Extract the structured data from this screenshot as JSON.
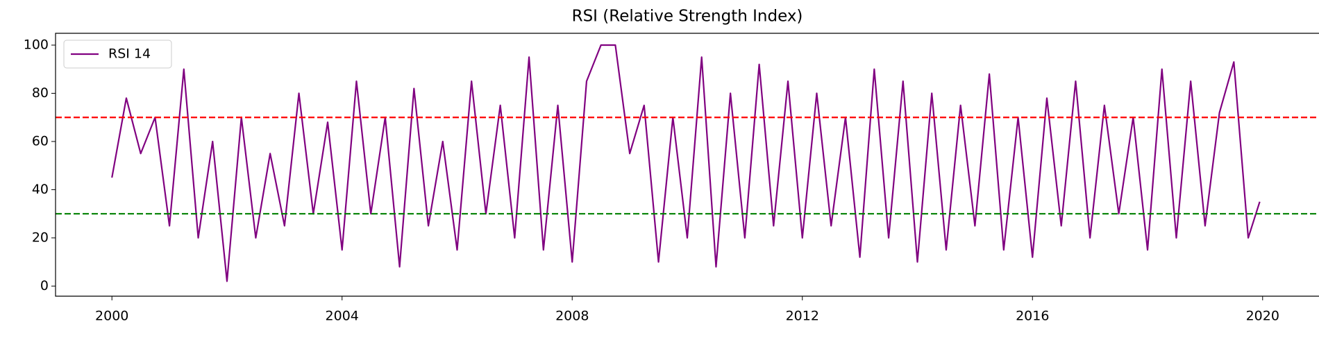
{
  "chart_data": {
    "type": "line",
    "title": "RSI (Relative Strength Index)",
    "x": [
      2000,
      2000.25,
      2000.5,
      2000.75,
      2001,
      2001.25,
      2001.5,
      2001.75,
      2002,
      2002.25,
      2002.5,
      2002.75,
      2003,
      2003.25,
      2003.5,
      2003.75,
      2004,
      2004.25,
      2004.5,
      2004.75,
      2005,
      2005.25,
      2005.5,
      2005.75,
      2006,
      2006.25,
      2006.5,
      2006.75,
      2007,
      2007.25,
      2007.5,
      2007.75,
      2008,
      2008.25,
      2008.5,
      2008.75,
      2009,
      2009.25,
      2009.5,
      2009.75,
      2010,
      2010.25,
      2010.5,
      2010.75,
      2011,
      2011.25,
      2011.5,
      2011.75,
      2012,
      2012.25,
      2012.5,
      2012.75,
      2013,
      2013.25,
      2013.5,
      2013.75,
      2014,
      2014.25,
      2014.5,
      2014.75,
      2015,
      2015.25,
      2015.5,
      2015.75,
      2016,
      2016.25,
      2016.5,
      2016.75,
      2017,
      2017.25,
      2017.5,
      2017.75,
      2018,
      2018.25,
      2018.5,
      2018.75,
      2019,
      2019.25,
      2019.5,
      2019.75,
      2019.95
    ],
    "series": [
      {
        "name": "RSI 14",
        "color": "#800080",
        "values": [
          45,
          78,
          55,
          70,
          25,
          90,
          20,
          60,
          2,
          70,
          20,
          55,
          25,
          80,
          30,
          68,
          15,
          85,
          30,
          70,
          8,
          82,
          25,
          60,
          15,
          85,
          30,
          75,
          20,
          95,
          15,
          75,
          10,
          85,
          100,
          100,
          55,
          75,
          10,
          70,
          20,
          95,
          8,
          80,
          20,
          92,
          25,
          85,
          20,
          80,
          25,
          70,
          12,
          90,
          20,
          85,
          10,
          80,
          15,
          75,
          25,
          88,
          15,
          70,
          12,
          78,
          25,
          85,
          20,
          75,
          30,
          70,
          15,
          90,
          20,
          85,
          25,
          72,
          93,
          20,
          35
        ]
      }
    ],
    "hlines": [
      {
        "value": 70,
        "color": "#ff0000"
      },
      {
        "value": 30,
        "color": "#008000"
      }
    ],
    "xlim": [
      1999.02,
      2020.98
    ],
    "xticks": [
      2000,
      2004,
      2008,
      2012,
      2016,
      2020
    ],
    "ylim": [
      -4.2,
      104.9
    ],
    "yticks": [
      0,
      20,
      40,
      60,
      80,
      100
    ],
    "legend": "upper left"
  }
}
